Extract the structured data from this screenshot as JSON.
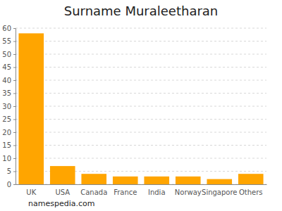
{
  "chart_data": {
    "type": "bar",
    "title": "Surname Muraleetharan",
    "categories": [
      "UK",
      "USA",
      "Canada",
      "France",
      "India",
      "Norway",
      "Singapore",
      "Others"
    ],
    "values": [
      58,
      7,
      4,
      3,
      3,
      3,
      2,
      4
    ],
    "color": "#ffa500",
    "ylim": [
      0,
      60
    ],
    "yticks": [
      0,
      5,
      10,
      15,
      20,
      25,
      30,
      35,
      40,
      45,
      50,
      55,
      60
    ],
    "grid": true,
    "source": "namespedia.com"
  }
}
